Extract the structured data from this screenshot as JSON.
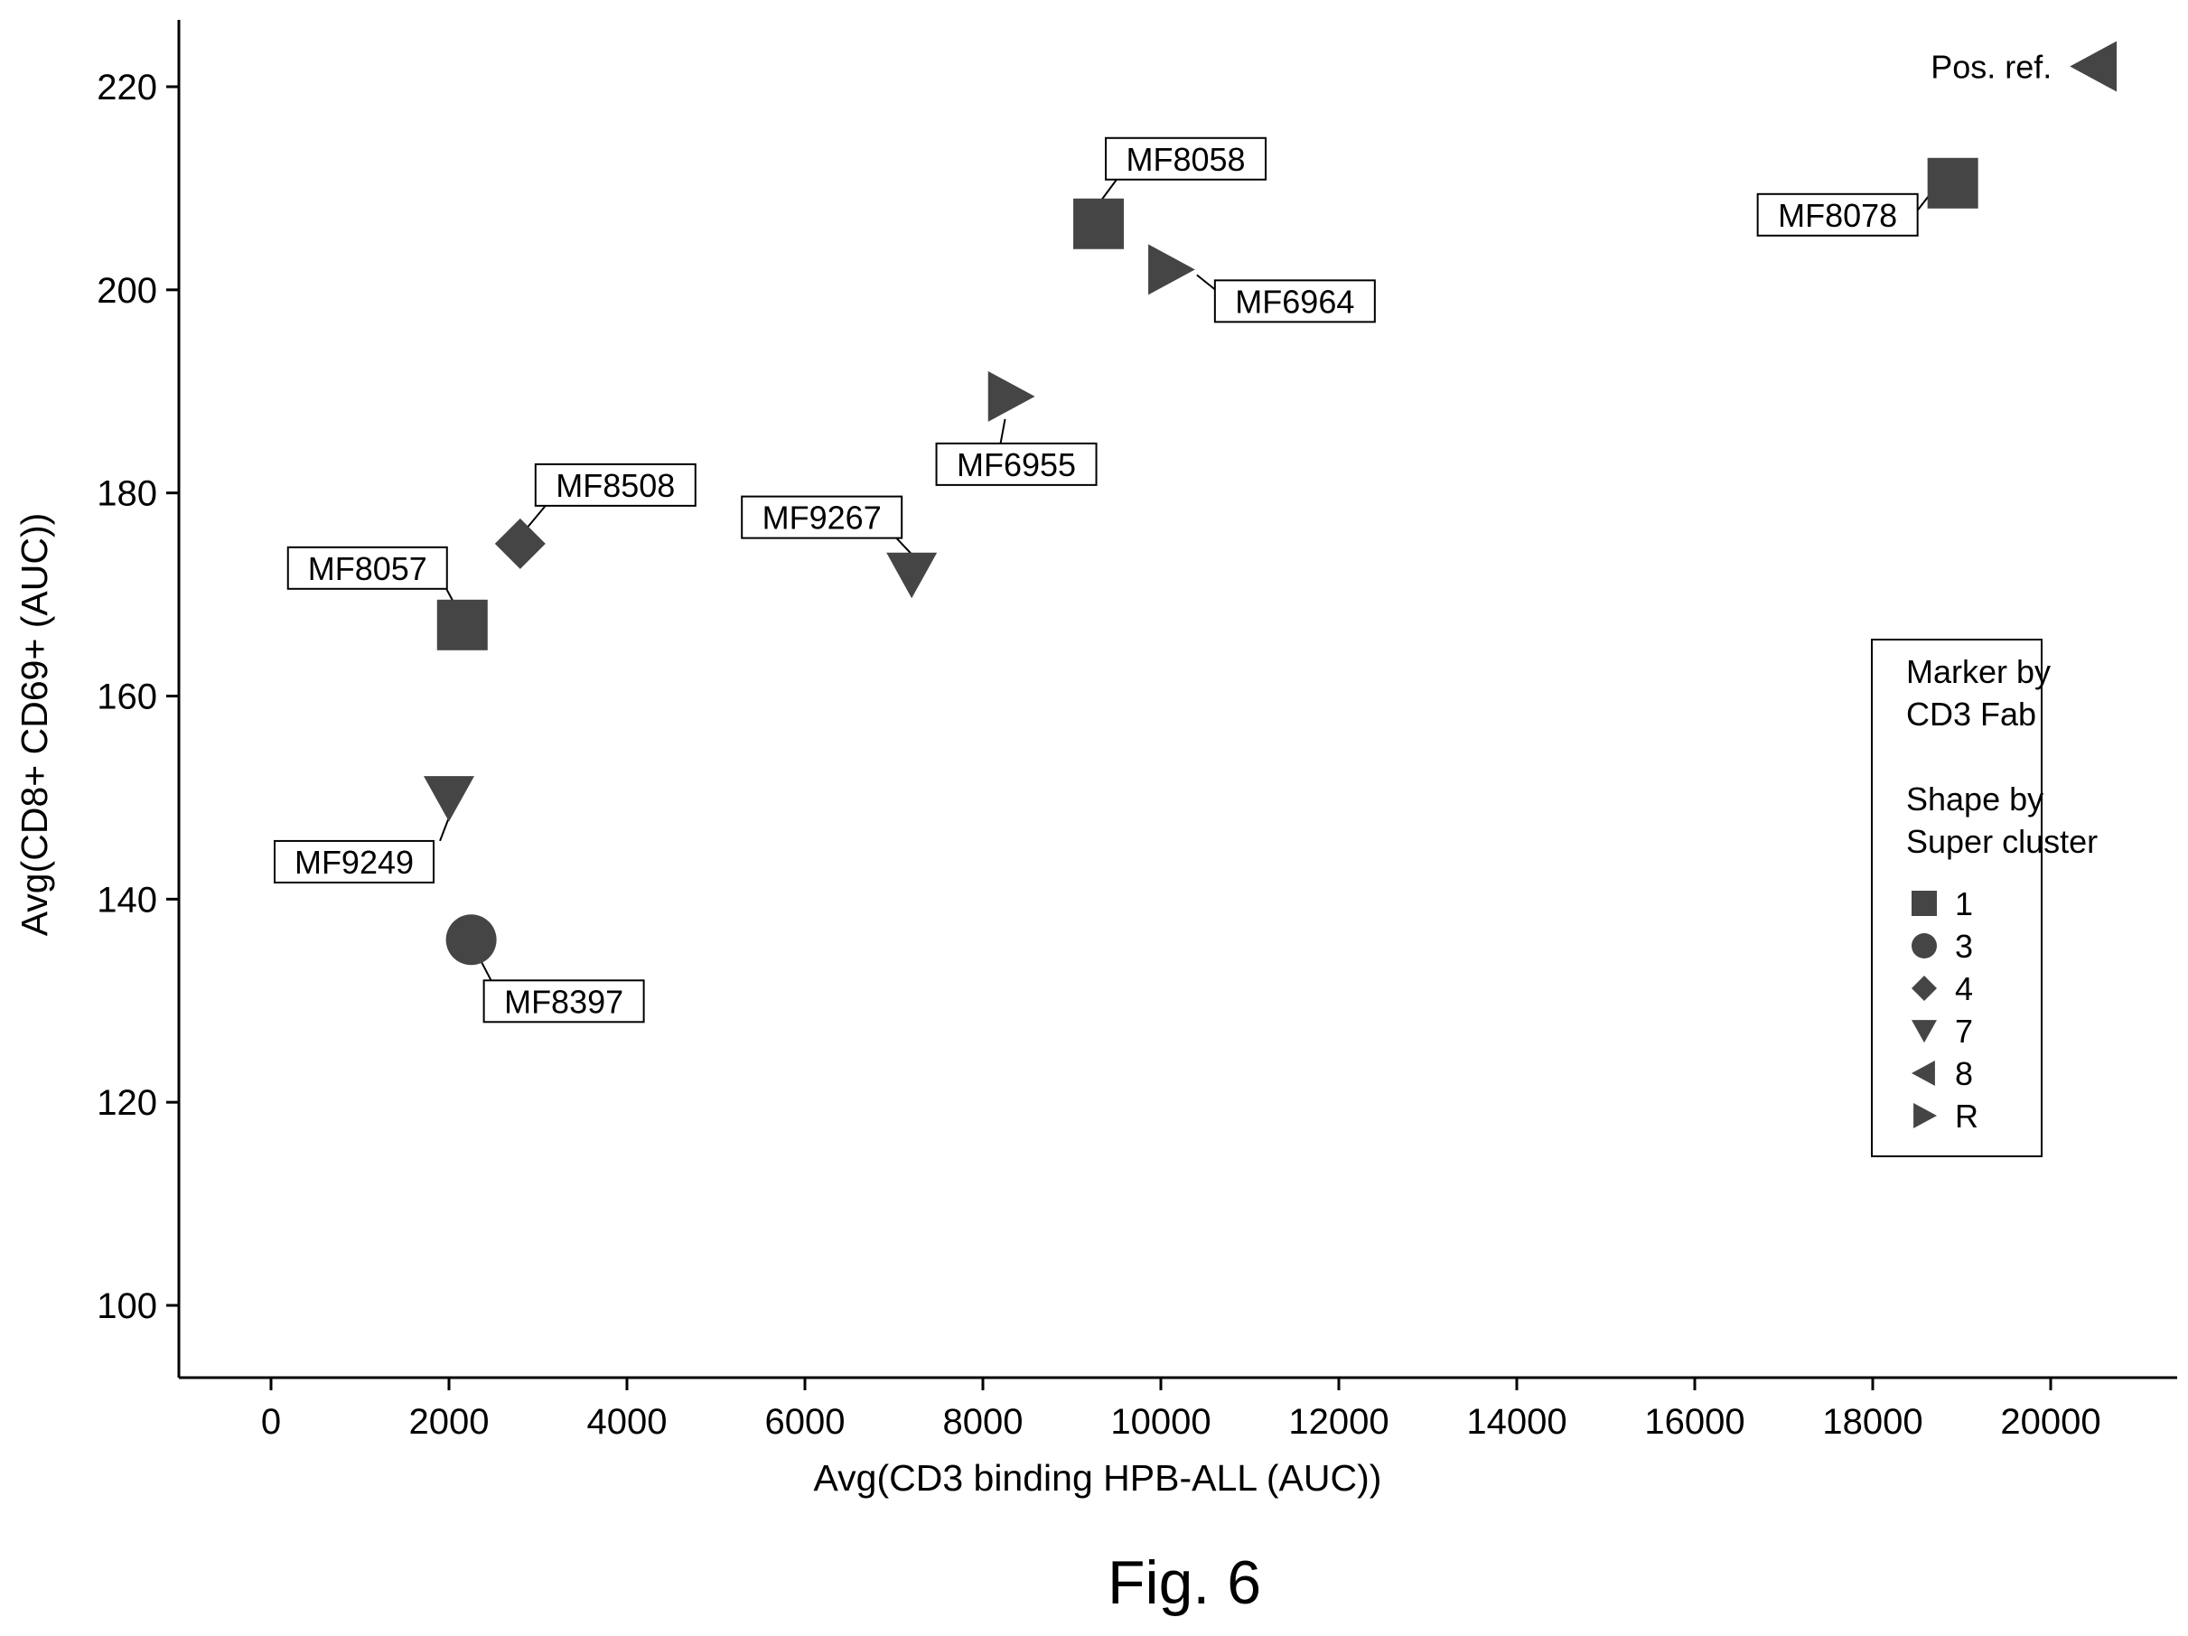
{
  "figure": {
    "caption": "Fig. 6"
  },
  "chart_data": {
    "type": "scatter",
    "xlabel": "Avg(CD3 binding HPB-ALL (AUC))",
    "ylabel": "Avg(CD8+ CD69+ (AUC))",
    "xlim": [
      -1000,
      21400
    ],
    "ylim": [
      93,
      227
    ],
    "xticks": [
      0,
      2000,
      4000,
      6000,
      8000,
      10000,
      12000,
      14000,
      16000,
      18000,
      20000
    ],
    "yticks": [
      100,
      120,
      140,
      160,
      180,
      200,
      220
    ],
    "grid": false,
    "marker_color": "#454545",
    "points": [
      {
        "label": "MF8057",
        "x": 2150,
        "y": 167,
        "cluster": "1"
      },
      {
        "label": "MF8058",
        "x": 9300,
        "y": 206.5,
        "cluster": "1"
      },
      {
        "label": "MF8078",
        "x": 18900,
        "y": 210.5,
        "cluster": "1"
      },
      {
        "label": "MF8397",
        "x": 2250,
        "y": 136,
        "cluster": "3"
      },
      {
        "label": "MF8508",
        "x": 2800,
        "y": 175,
        "cluster": "4"
      },
      {
        "label": "MF9249",
        "x": 2000,
        "y": 150,
        "cluster": "7"
      },
      {
        "label": "MF9267",
        "x": 7200,
        "y": 172,
        "cluster": "7"
      },
      {
        "label": "Pos. ref.",
        "x": 20500,
        "y": 222,
        "cluster": "8"
      },
      {
        "label": "MF6964",
        "x": 10100,
        "y": 202,
        "cluster": "R"
      },
      {
        "label": "MF6955",
        "x": 8300,
        "y": 189.5,
        "cluster": "R"
      }
    ],
    "legend": {
      "position": "right",
      "title_lines": [
        "Marker by",
        "CD3 Fab",
        "",
        "Shape by",
        "Super cluster"
      ],
      "entries": [
        {
          "label": "1",
          "shape": "square"
        },
        {
          "label": "3",
          "shape": "circle"
        },
        {
          "label": "4",
          "shape": "diamond"
        },
        {
          "label": "7",
          "shape": "triangle-down"
        },
        {
          "label": "8",
          "shape": "triangle-left"
        },
        {
          "label": "R",
          "shape": "triangle-right"
        }
      ]
    }
  }
}
